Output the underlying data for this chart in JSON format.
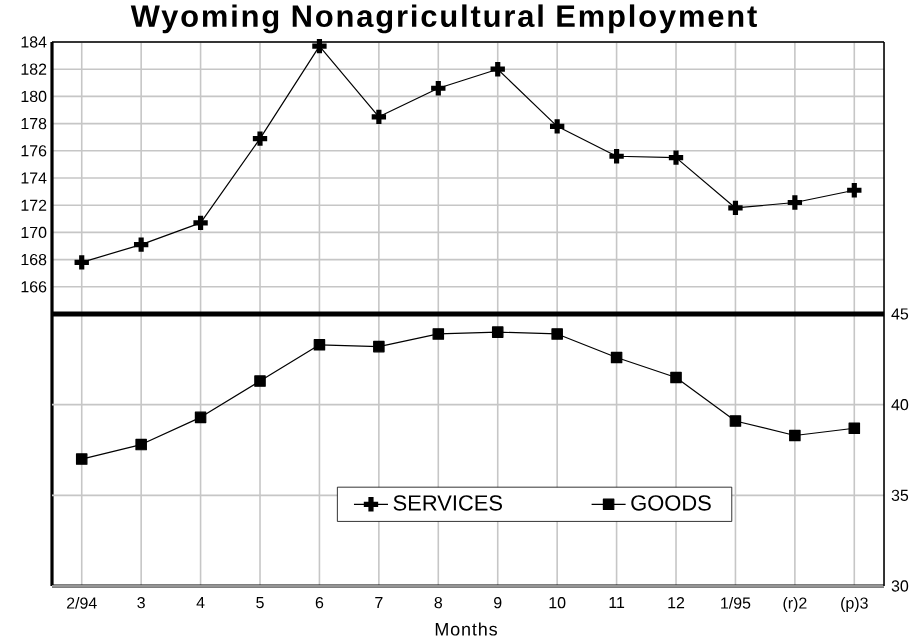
{
  "chart_data": {
    "type": "line",
    "title": "Wyoming Nonagricultural Employment",
    "xlabel": "Months",
    "categories": [
      "2/94",
      "3",
      "4",
      "5",
      "6",
      "7",
      "8",
      "9",
      "10",
      "11",
      "12",
      "1/95",
      "(r)2",
      "(p)3"
    ],
    "series": [
      {
        "name": "SERVICES",
        "color": "#000000",
        "marker": "cross",
        "values": [
          167.8,
          169.1,
          170.7,
          176.9,
          183.7,
          178.5,
          180.6,
          182.0,
          177.8,
          175.6,
          175.5,
          171.8,
          172.2,
          173.1
        ]
      },
      {
        "name": "GOODS",
        "color": "#000000",
        "marker": "square",
        "axis": "y2",
        "values": [
          37.0,
          37.8,
          39.3,
          41.3,
          43.3,
          43.2,
          43.9,
          44.0,
          43.9,
          42.6,
          41.5,
          39.1,
          38.3,
          38.7
        ]
      }
    ],
    "ylim": [
      144,
      184
    ],
    "yticks": [
      166,
      168,
      170,
      172,
      174,
      176,
      178,
      180,
      182,
      184
    ],
    "y2lim": [
      30,
      60
    ],
    "y2ticks": [
      30,
      35,
      40,
      45
    ],
    "ref_lines": [
      {
        "axis": "y2",
        "value": 45,
        "color": "#000000"
      }
    ],
    "grid": true,
    "legend": "bottom",
    "line_style": "solid"
  }
}
